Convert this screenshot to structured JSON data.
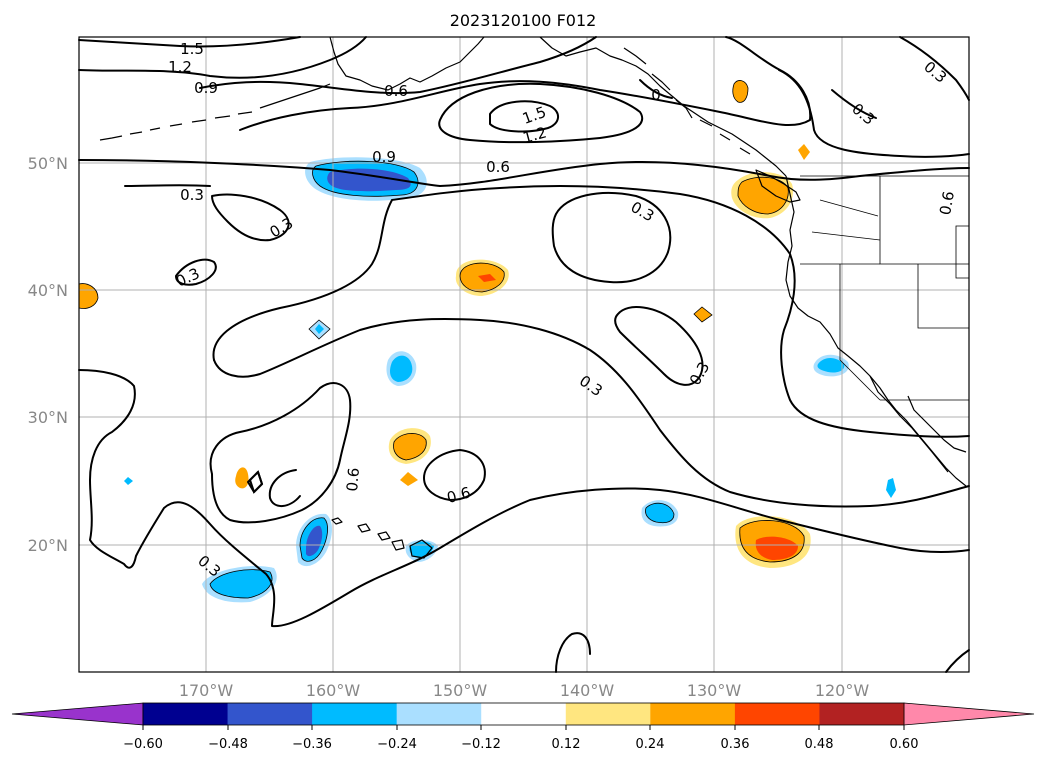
{
  "title": "2023120100 F012",
  "map": {
    "lat_labels": [
      "50°N",
      "40°N",
      "30°N",
      "20°N"
    ],
    "lon_labels": [
      "170°W",
      "160°W",
      "150°W",
      "140°W",
      "130°W",
      "120°W"
    ],
    "contour_labels": [
      "1.5",
      "1.2",
      "0.9",
      "0.6",
      "0",
      "0.3",
      "1.5",
      "1.2",
      "0.9",
      "0.6",
      "0.3",
      "0.3",
      "0.3",
      "0.3",
      "0.6",
      "0.3",
      "0.3",
      "0.6",
      "0.6",
      "0.3",
      "0.3"
    ]
  },
  "colorbar": {
    "ticks": [
      "−0.60",
      "−0.48",
      "−0.36",
      "−0.24",
      "−0.12",
      "0.12",
      "0.24",
      "0.36",
      "0.48",
      "0.60"
    ],
    "colors": {
      "under": "#9933cc",
      "bins": [
        "#000090",
        "#3355cc",
        "#00bbff",
        "#aadfff",
        "#ffffff",
        "#ffe680",
        "#ffa500",
        "#ff4500",
        "#b22222"
      ],
      "over": "#ff88aa"
    }
  }
}
